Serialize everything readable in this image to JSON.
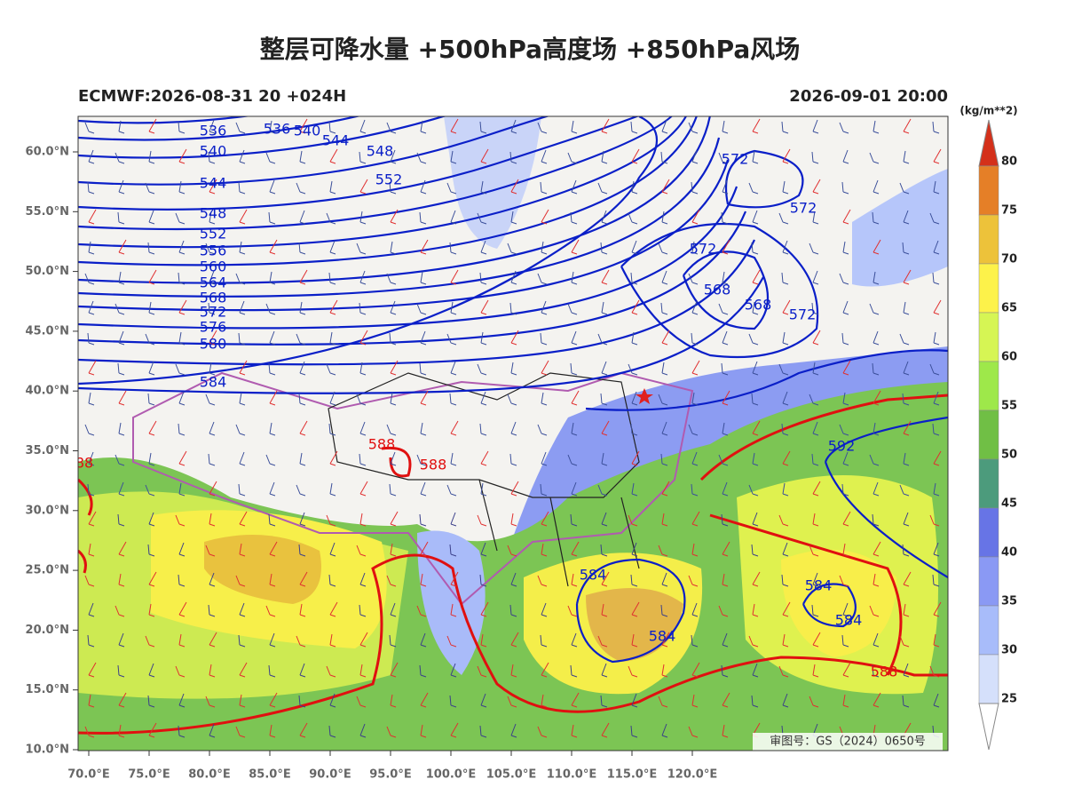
{
  "title": "整层可降水量 +500hPa高度场 +850hPa风场",
  "model_run": "ECMWF:2026-08-31 20 +024H",
  "valid_time": "2026-09-01 20:00",
  "lat_labels": [
    "60.0°N",
    "55.0°N",
    "50.0°N",
    "45.0°N",
    "40.0°N",
    "35.0°N",
    "30.0°N",
    "25.0°N",
    "20.0°N",
    "15.0°N",
    "10.0°N"
  ],
  "lon_labels": [
    "70.0°E",
    "75.0°E",
    "80.0°E",
    "85.0°E",
    "90.0°E",
    "95.0°E",
    "100.0°E",
    "105.0°E",
    "110.0°E",
    "115.0°E",
    "120.0°E"
  ],
  "colorbar": {
    "unit": "(kg/m**2)",
    "ticks": [
      80,
      75,
      70,
      65,
      60,
      55,
      50,
      45,
      40,
      35,
      30,
      25
    ],
    "colors": [
      "#e57f27",
      "#edc23a",
      "#fdf24a",
      "#d6f554",
      "#9ee84a",
      "#70bf45",
      "#4c9b7c",
      "#6774e6",
      "#8a99f4",
      "#a8bcfa",
      "#d5e0fb"
    ],
    "top_color": "#d4301a",
    "bottom_color": "#ffffff"
  },
  "height_labels_blue": [
    "536",
    "536",
    "540",
    "544",
    "548",
    "552",
    "540",
    "544",
    "548",
    "552",
    "556",
    "560",
    "564",
    "568",
    "572",
    "576",
    "580",
    "584",
    "572",
    "572",
    "572",
    "568",
    "568",
    "572",
    "592",
    "584",
    "584",
    "584",
    "584"
  ],
  "height_labels_red": [
    "588",
    "588",
    "88",
    "588"
  ],
  "approval": "审图号：GS（2024）0650号"
}
